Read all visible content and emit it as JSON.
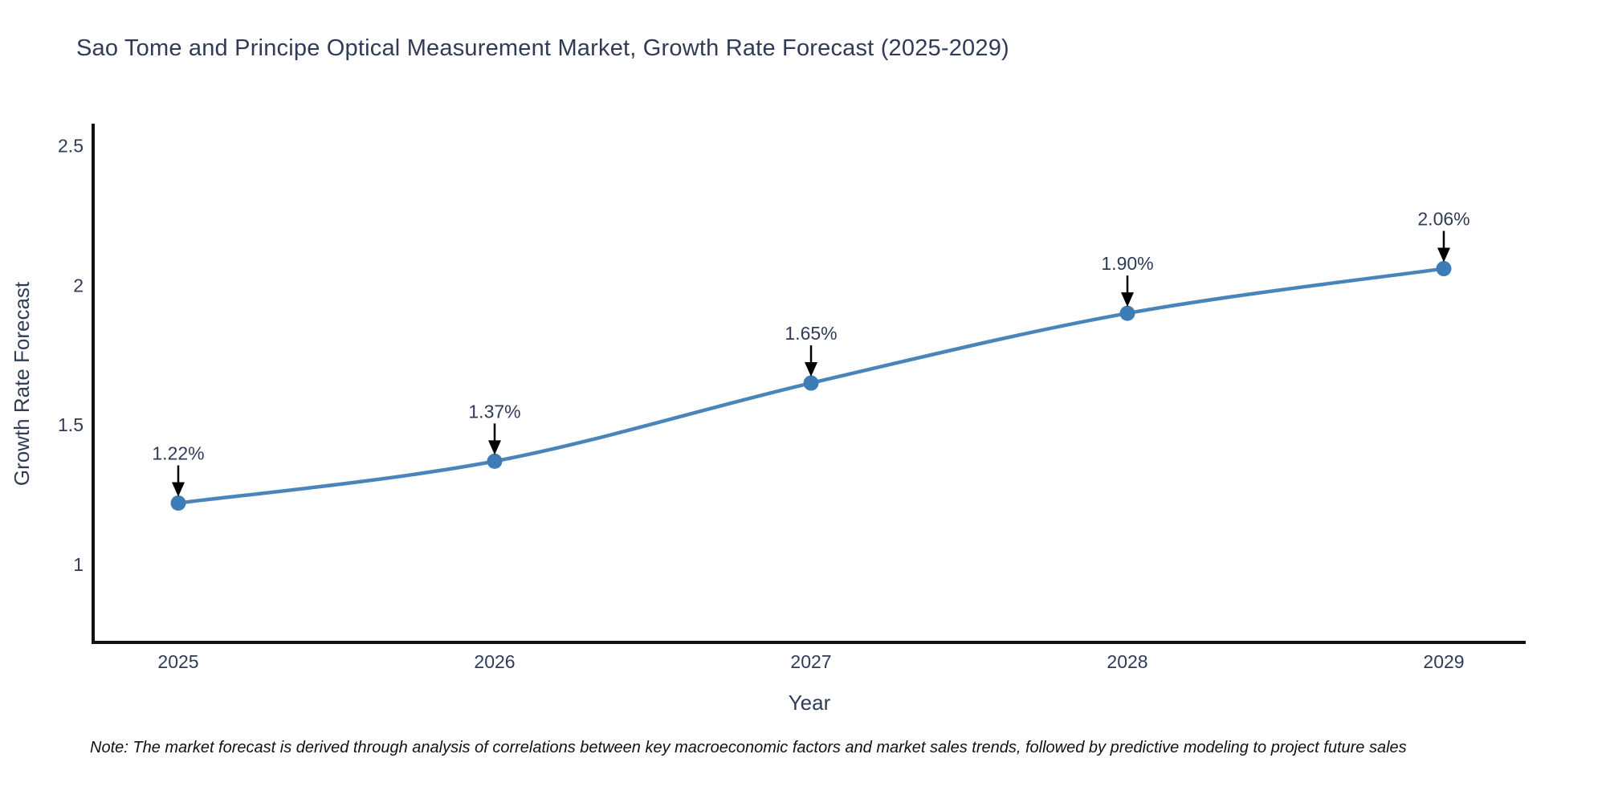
{
  "title": "Sao Tome and Principe Optical Measurement Market, Growth Rate Forecast (2025-2029)",
  "note": "Note: The market forecast is derived through analysis of correlations between key macroeconomic factors and market sales trends, followed by predictive modeling to project future sales",
  "chart_data": {
    "type": "line",
    "title": "Sao Tome and Principe Optical Measurement Market, Growth Rate Forecast (2025-2029)",
    "xlabel": "Year",
    "ylabel": "Growth Rate Forecast",
    "categories": [
      "2025",
      "2026",
      "2027",
      "2028",
      "2029"
    ],
    "series": [
      {
        "name": "Growth Rate Forecast",
        "values": [
          1.22,
          1.37,
          1.65,
          1.9,
          2.06
        ],
        "point_labels": [
          "1.22%",
          "1.37%",
          "1.65%",
          "1.90%",
          "2.06%"
        ]
      }
    ],
    "yticks": [
      "1",
      "1.5",
      "2",
      "2.5"
    ],
    "ytick_values": [
      1,
      1.5,
      2,
      2.5
    ],
    "ylim": [
      0.72,
      2.56
    ],
    "line_shape": "spline",
    "grid": false,
    "legend_position": "none",
    "colors": {
      "line": "#4a85ba",
      "marker": "#3e7cb5",
      "text": "#2f3b57",
      "axis": "#111111",
      "annotation_arrow": "#000000"
    }
  }
}
